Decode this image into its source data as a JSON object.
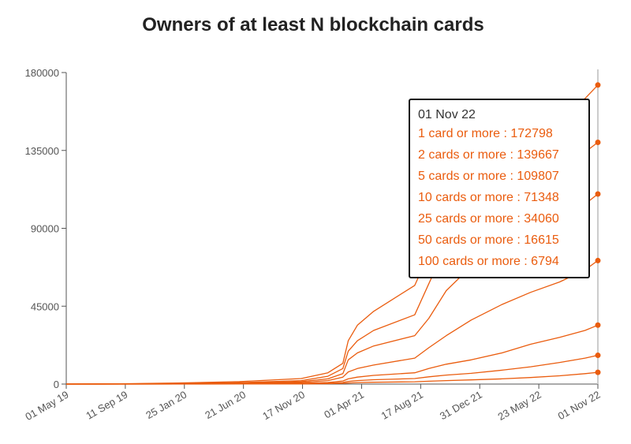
{
  "colors": {
    "series": "#ea5c0e",
    "axis": "#555555",
    "hover_line": "#cccccc"
  },
  "chart_data": {
    "type": "line",
    "title": "Owners of at least N blockchain cards",
    "xlabel": "",
    "ylabel": "",
    "x_tick_labels": [
      "01 May 19",
      "11 Sep 19",
      "25 Jan 20",
      "21 Jun 20",
      "17 Nov 20",
      "01 Apr 21",
      "17 Aug 21",
      "31 Dec 21",
      "23 May 22",
      "01 Nov 22"
    ],
    "y_tick_labels": [
      "0",
      "45000",
      "90000",
      "135000",
      "180000"
    ],
    "ylim": [
      0,
      180000
    ],
    "grid": false,
    "x": [
      "2019-05-01",
      "2019-09-11",
      "2020-01-25",
      "2020-06-21",
      "2020-11-17",
      "2021-01-20",
      "2021-02-25",
      "2021-03-10",
      "2021-04-01",
      "2021-05-10",
      "2021-08-17",
      "2021-09-20",
      "2021-11-01",
      "2021-12-31",
      "2022-03-15",
      "2022-05-23",
      "2022-08-01",
      "2022-10-01",
      "2022-11-01"
    ],
    "series": [
      {
        "name": "1 card or more",
        "values": [
          0,
          200,
          600,
          1400,
          3200,
          6500,
          12000,
          25000,
          34000,
          42000,
          57000,
          75000,
          100000,
          126000,
          145000,
          152000,
          158000,
          165000,
          172798
        ]
      },
      {
        "name": "2 cards or more",
        "values": [
          0,
          100,
          300,
          800,
          2000,
          4500,
          9000,
          19000,
          25000,
          31000,
          40000,
          58000,
          80000,
          100000,
          114000,
          122000,
          128000,
          134000,
          139667
        ]
      },
      {
        "name": "5 cards or more",
        "values": [
          0,
          60,
          180,
          500,
          1400,
          3000,
          6000,
          14000,
          18000,
          22000,
          28000,
          38000,
          54000,
          68000,
          80000,
          90000,
          98000,
          104000,
          109807
        ]
      },
      {
        "name": "10 cards or more",
        "values": [
          0,
          30,
          100,
          300,
          900,
          2000,
          4000,
          7000,
          9000,
          11000,
          15000,
          21000,
          28000,
          37000,
          46000,
          53000,
          59000,
          66000,
          71348
        ]
      },
      {
        "name": "25 cards or more",
        "values": [
          0,
          15,
          50,
          150,
          450,
          900,
          1800,
          3000,
          4000,
          5000,
          6500,
          9000,
          11500,
          14000,
          18000,
          23000,
          27000,
          31000,
          34060
        ]
      },
      {
        "name": "50 cards or more",
        "values": [
          0,
          8,
          25,
          80,
          220,
          450,
          900,
          1500,
          2000,
          2500,
          3200,
          4200,
          5200,
          6200,
          8000,
          10000,
          12500,
          15000,
          16615
        ]
      },
      {
        "name": "100 cards or more",
        "values": [
          0,
          4,
          12,
          40,
          110,
          220,
          400,
          650,
          850,
          1050,
          1300,
          1650,
          2000,
          2400,
          3000,
          3800,
          4800,
          6000,
          6794
        ]
      }
    ],
    "tooltip": {
      "date": "01 Nov 22",
      "rows": [
        "1 card or more : 172798",
        "2 cards or more : 139667",
        "5 cards or more : 109807",
        "10 cards or more : 71348",
        "25 cards or more : 34060",
        "50 cards or more : 16615",
        "100 cards or more : 6794"
      ]
    }
  }
}
